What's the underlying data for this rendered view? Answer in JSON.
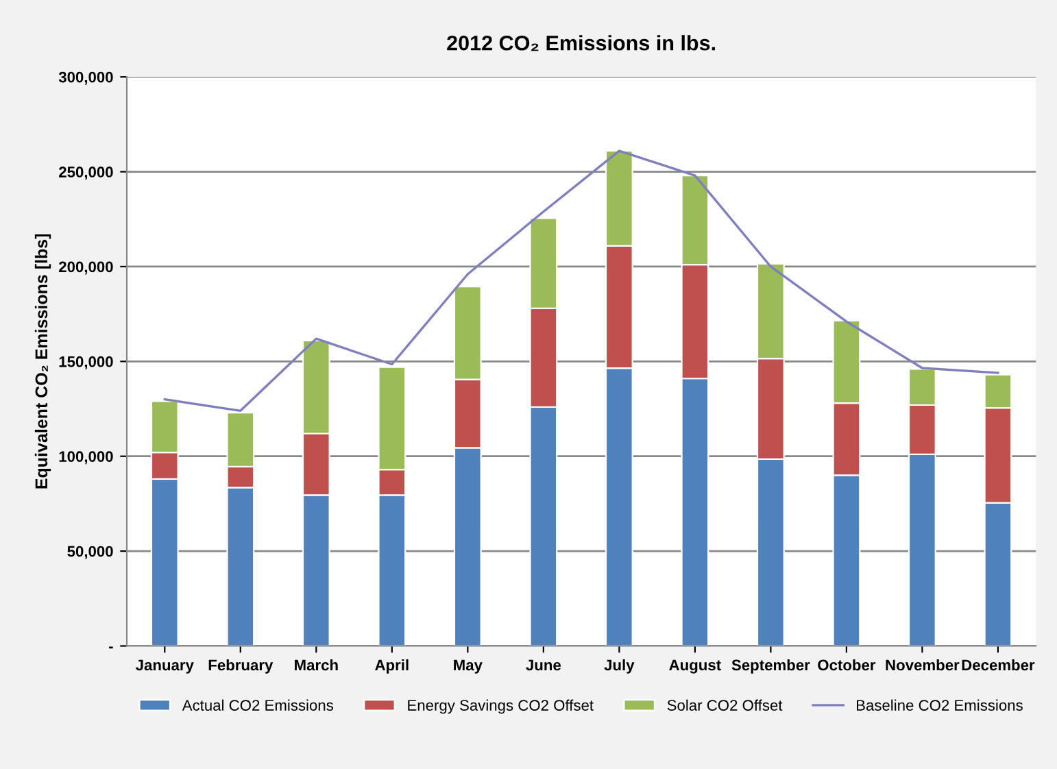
{
  "chart_data": {
    "type": "bar",
    "title": "2012 CO₂ Emissions in lbs.",
    "ylabel": "Equivalent CO₂ Emissions [lbs]",
    "categories": [
      "January",
      "February",
      "March",
      "April",
      "May",
      "June",
      "July",
      "August",
      "September",
      "October",
      "November",
      "December"
    ],
    "stacked": true,
    "series": [
      {
        "name": "Actual CO2 Emissions",
        "color": "#4f81bd",
        "values": [
          88000,
          83500,
          79500,
          79500,
          104500,
          126000,
          146500,
          141000,
          98500,
          90000,
          101000,
          75500
        ]
      },
      {
        "name": "Energy Savings CO2 Offset",
        "color": "#c0504d",
        "values": [
          14000,
          11000,
          32500,
          13500,
          36000,
          52000,
          64500,
          60000,
          53000,
          38000,
          26000,
          50000
        ]
      },
      {
        "name": "Solar CO2 Offset",
        "color": "#9bbb59",
        "values": [
          27000,
          28500,
          49000,
          54000,
          49000,
          47500,
          50000,
          47000,
          50000,
          43500,
          19000,
          17500
        ]
      },
      {
        "name": "Baseline CO2 Emissions",
        "type": "line",
        "color": "#7f7fbf",
        "values": [
          130000,
          124000,
          162000,
          148500,
          196000,
          229000,
          261000,
          248000,
          200000,
          171000,
          146500,
          144000
        ]
      }
    ],
    "ylim": [
      0,
      300000
    ],
    "yticks": [
      {
        "value": 0,
        "label": "-"
      },
      {
        "value": 50000,
        "label": "50,000"
      },
      {
        "value": 100000,
        "label": "100,000"
      },
      {
        "value": 150000,
        "label": "150,000"
      },
      {
        "value": 200000,
        "label": "200,000"
      },
      {
        "value": 250000,
        "label": "250,000"
      },
      {
        "value": 300000,
        "label": "300,000"
      }
    ],
    "grid": "y",
    "legend": "bottom",
    "marker": "none",
    "line_style": "solid"
  }
}
